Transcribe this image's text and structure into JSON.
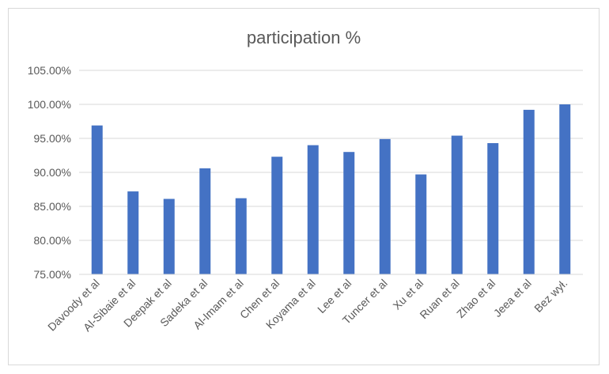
{
  "chart_data": {
    "type": "bar",
    "title": "participation %",
    "xlabel": "",
    "ylabel": "",
    "categories": [
      "Davoody et al",
      "Al-Sibaie et al",
      "Deepak et al",
      "Sadeka et al",
      "Al-Imam et al",
      "Chen et al",
      "Koyama et al",
      "Lee et al",
      "Tuncer et al",
      "Xu et al",
      "Ruan et al",
      "Zhao et al",
      "Jeea et al",
      "Bez wył."
    ],
    "values": [
      96.9,
      87.2,
      86.1,
      90.6,
      86.2,
      92.3,
      94.0,
      93.0,
      94.9,
      89.7,
      95.4,
      94.3,
      99.2,
      100.0
    ],
    "ylim": [
      75,
      105
    ],
    "yticks": [
      "75.00%",
      "80.00%",
      "85.00%",
      "90.00%",
      "95.00%",
      "100.00%",
      "105.00%"
    ],
    "grid": true,
    "bar_color": "#4472c4"
  }
}
